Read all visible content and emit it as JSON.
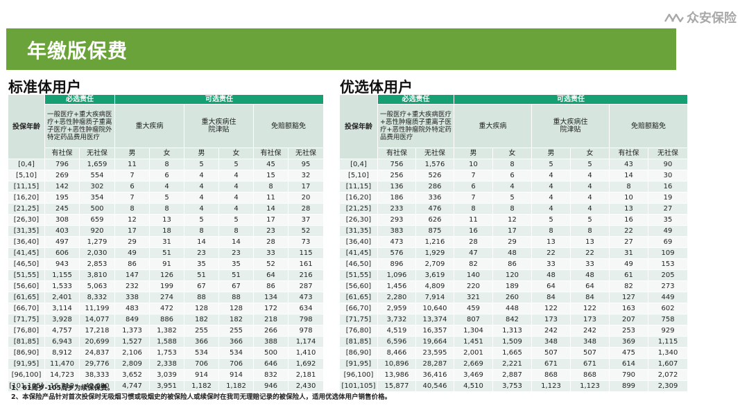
{
  "brand": {
    "name": "众安保险",
    "icon": "zhongan-logo-icon"
  },
  "banner": {
    "title": "年缴版保费"
  },
  "headers": {
    "age": "投保年龄",
    "required": "必选责任",
    "optional": "可选责任",
    "base_desc": "一般医疗+重大疾病医疗+恶性肿瘤质子重离子医疗+恶性肿瘤院外特定药品费用医疗",
    "critical": "重大疾病",
    "hospital": "重大疾病住院津贴",
    "waiver": "免赔额豁免",
    "with_ss": "有社保",
    "no_ss": "无社保",
    "male": "男",
    "female": "女"
  },
  "standard": {
    "title": "标准体用户",
    "rows": [
      [
        "[0,4]",
        "796",
        "1,659",
        "11",
        "8",
        "5",
        "5",
        "45",
        "95"
      ],
      [
        "[5,10]",
        "269",
        "554",
        "7",
        "6",
        "4",
        "4",
        "15",
        "32"
      ],
      [
        "[11,15]",
        "142",
        "302",
        "6",
        "4",
        "4",
        "4",
        "8",
        "17"
      ],
      [
        "[16,20]",
        "195",
        "354",
        "7",
        "5",
        "4",
        "4",
        "11",
        "20"
      ],
      [
        "[21,25]",
        "245",
        "500",
        "8",
        "8",
        "4",
        "4",
        "14",
        "28"
      ],
      [
        "[26,30]",
        "308",
        "659",
        "12",
        "13",
        "5",
        "5",
        "17",
        "37"
      ],
      [
        "[31,35]",
        "403",
        "920",
        "17",
        "18",
        "8",
        "8",
        "23",
        "52"
      ],
      [
        "[36,40]",
        "497",
        "1,279",
        "29",
        "31",
        "14",
        "14",
        "28",
        "73"
      ],
      [
        "[41,45]",
        "606",
        "2,030",
        "49",
        "51",
        "23",
        "23",
        "33",
        "115"
      ],
      [
        "[46,50]",
        "943",
        "2,853",
        "86",
        "91",
        "35",
        "35",
        "52",
        "161"
      ],
      [
        "[51,55]",
        "1,155",
        "3,810",
        "147",
        "126",
        "51",
        "51",
        "64",
        "216"
      ],
      [
        "[56,60]",
        "1,533",
        "5,063",
        "232",
        "199",
        "67",
        "67",
        "86",
        "287"
      ],
      [
        "[61,65]",
        "2,401",
        "8,332",
        "338",
        "274",
        "88",
        "88",
        "134",
        "473"
      ],
      [
        "[66,70]",
        "3,114",
        "11,199",
        "483",
        "472",
        "128",
        "128",
        "172",
        "634"
      ],
      [
        "[71,75]",
        "3,928",
        "14,077",
        "849",
        "886",
        "182",
        "182",
        "218",
        "798"
      ],
      [
        "[76,80]",
        "4,757",
        "17,218",
        "1,373",
        "1,382",
        "255",
        "255",
        "266",
        "978"
      ],
      [
        "[81,85]",
        "6,943",
        "20,699",
        "1,527",
        "1,588",
        "366",
        "366",
        "388",
        "1,174"
      ],
      [
        "[86,90]",
        "8,912",
        "24,837",
        "2,106",
        "1,753",
        "534",
        "534",
        "500",
        "1,410"
      ],
      [
        "[91,95]",
        "11,470",
        "29,776",
        "2,809",
        "2,338",
        "706",
        "706",
        "646",
        "1,692"
      ],
      [
        "[96,100]",
        "14,723",
        "38,333",
        "3,652",
        "3,039",
        "914",
        "914",
        "832",
        "2,181"
      ],
      [
        "[101,105]",
        "16,712",
        "42,680",
        "4,747",
        "3,951",
        "1,182",
        "1,182",
        "946",
        "2,430"
      ]
    ]
  },
  "preferred": {
    "title": "优选体用户",
    "rows": [
      [
        "[0,4]",
        "756",
        "1,576",
        "10",
        "8",
        "5",
        "5",
        "43",
        "90"
      ],
      [
        "[5,10]",
        "256",
        "526",
        "7",
        "6",
        "4",
        "4",
        "14",
        "30"
      ],
      [
        "[11,15]",
        "136",
        "286",
        "6",
        "4",
        "4",
        "4",
        "8",
        "16"
      ],
      [
        "[16,20]",
        "186",
        "336",
        "7",
        "5",
        "4",
        "4",
        "10",
        "19"
      ],
      [
        "[21,25]",
        "233",
        "476",
        "8",
        "8",
        "4",
        "4",
        "13",
        "27"
      ],
      [
        "[26,30]",
        "293",
        "626",
        "11",
        "12",
        "5",
        "5",
        "16",
        "35"
      ],
      [
        "[31,35]",
        "383",
        "875",
        "16",
        "17",
        "8",
        "8",
        "22",
        "49"
      ],
      [
        "[36,40]",
        "473",
        "1,216",
        "28",
        "29",
        "13",
        "13",
        "27",
        "69"
      ],
      [
        "[41,45]",
        "576",
        "1,929",
        "47",
        "48",
        "22",
        "22",
        "31",
        "109"
      ],
      [
        "[46,50]",
        "896",
        "2,709",
        "82",
        "86",
        "33",
        "33",
        "49",
        "153"
      ],
      [
        "[51,55]",
        "1,096",
        "3,619",
        "140",
        "120",
        "48",
        "48",
        "61",
        "205"
      ],
      [
        "[56,60]",
        "1,456",
        "4,809",
        "220",
        "189",
        "64",
        "64",
        "82",
        "273"
      ],
      [
        "[61,65]",
        "2,280",
        "7,914",
        "321",
        "260",
        "84",
        "84",
        "127",
        "449"
      ],
      [
        "[66,70]",
        "2,959",
        "10,640",
        "459",
        "448",
        "122",
        "122",
        "163",
        "602"
      ],
      [
        "[71,75]",
        "3,732",
        "13,374",
        "807",
        "842",
        "173",
        "173",
        "207",
        "758"
      ],
      [
        "[76,80]",
        "4,519",
        "16,357",
        "1,304",
        "1,313",
        "242",
        "242",
        "253",
        "929"
      ],
      [
        "[81,85]",
        "6,596",
        "19,664",
        "1,451",
        "1,509",
        "348",
        "348",
        "369",
        "1,115"
      ],
      [
        "[86,90]",
        "8,466",
        "23,595",
        "2,001",
        "1,665",
        "507",
        "507",
        "475",
        "1,340"
      ],
      [
        "[91,95]",
        "10,896",
        "28,287",
        "2,669",
        "2,221",
        "671",
        "671",
        "614",
        "1,607"
      ],
      [
        "[96,100]",
        "13,986",
        "36,416",
        "3,469",
        "2,887",
        "868",
        "868",
        "790",
        "2,072"
      ],
      [
        "[101,105]",
        "15,877",
        "40,546",
        "4,510",
        "3,753",
        "1,123",
        "1,123",
        "899",
        "2,309"
      ]
    ]
  },
  "notes": [
    "1、61周岁-105周岁为续保保费。",
    "2、本保险产品针对首次投保时无吸烟习惯或吸烟史的被保险人或续保时在我司无理赔记录的被保险人，适用优选体用户销售价格。"
  ]
}
